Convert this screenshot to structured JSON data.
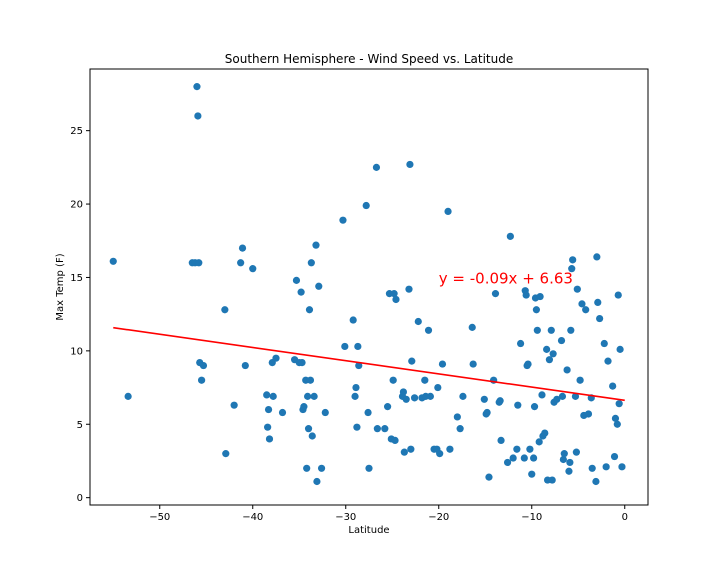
{
  "chart_data": {
    "type": "scatter",
    "title": "Southern Hemisphere - Wind Speed vs. Latitude",
    "xlabel": "Latitude",
    "ylabel": "Max Temp (F)",
    "xlim": [
      -57.5,
      2.5
    ],
    "ylim": [
      -0.5,
      29.2
    ],
    "xticks": [
      -50,
      -40,
      -30,
      -20,
      -10,
      0
    ],
    "xtick_labels": [
      "−50",
      "−40",
      "−30",
      "−20",
      "−10",
      "0"
    ],
    "yticks": [
      0,
      5,
      10,
      15,
      20,
      25
    ],
    "ytick_labels": [
      "0",
      "5",
      "10",
      "15",
      "20",
      "25"
    ],
    "grid": false,
    "legend": "none",
    "colors": {
      "points": "#1f77b4",
      "regression": "#ff0000"
    },
    "regression": {
      "slope": -0.09,
      "intercept": 6.63,
      "x_range": [
        -55,
        0
      ],
      "equation": "y = -0.09x + 6.63",
      "label_x": -20,
      "label_y": 15
    },
    "series": [
      {
        "points": [
          [
            -55,
            16.1
          ],
          [
            -53.4,
            6.9
          ],
          [
            -46.5,
            16
          ],
          [
            -46.2,
            16
          ],
          [
            -46,
            28
          ],
          [
            -45.9,
            26
          ],
          [
            -45.8,
            16
          ],
          [
            -45.7,
            9.2
          ],
          [
            -45.5,
            8
          ],
          [
            -45.3,
            9
          ],
          [
            -43,
            12.8
          ],
          [
            -42.9,
            3
          ],
          [
            -42,
            6.3
          ],
          [
            -41.3,
            16
          ],
          [
            -41.1,
            17
          ],
          [
            -40.8,
            9
          ],
          [
            -40,
            15.6
          ],
          [
            -38.5,
            7
          ],
          [
            -38.4,
            4.8
          ],
          [
            -38.3,
            6
          ],
          [
            -38.2,
            4
          ],
          [
            -37.9,
            9.2
          ],
          [
            -37.8,
            6.9
          ],
          [
            -37.5,
            9.5
          ],
          [
            -36.8,
            5.8
          ],
          [
            -35.5,
            9.4
          ],
          [
            -35.3,
            14.8
          ],
          [
            -35,
            9.2
          ],
          [
            -34.8,
            14
          ],
          [
            -34.7,
            9.2
          ],
          [
            -34.6,
            6
          ],
          [
            -34.5,
            6.2
          ],
          [
            -34.3,
            8
          ],
          [
            -34.2,
            2
          ],
          [
            -34.1,
            6.9
          ],
          [
            -34,
            4.7
          ],
          [
            -33.9,
            12.8
          ],
          [
            -33.8,
            8
          ],
          [
            -33.7,
            16
          ],
          [
            -33.6,
            4.2
          ],
          [
            -33.4,
            6.9
          ],
          [
            -33.2,
            17.2
          ],
          [
            -33.1,
            1.1
          ],
          [
            -32.9,
            14.4
          ],
          [
            -32.6,
            2
          ],
          [
            -32.2,
            5.8
          ],
          [
            -30.3,
            18.9
          ],
          [
            -30.1,
            10.3
          ],
          [
            -29.2,
            12.1
          ],
          [
            -29,
            6.9
          ],
          [
            -28.9,
            7.5
          ],
          [
            -28.8,
            4.8
          ],
          [
            -28.7,
            10.3
          ],
          [
            -28.6,
            9
          ],
          [
            -27.8,
            19.9
          ],
          [
            -27.6,
            5.8
          ],
          [
            -27.5,
            2
          ],
          [
            -26.7,
            22.5
          ],
          [
            -26.6,
            4.7
          ],
          [
            -25.8,
            4.7
          ],
          [
            -25.5,
            6.2
          ],
          [
            -25.3,
            13.9
          ],
          [
            -25.1,
            4
          ],
          [
            -24.9,
            8
          ],
          [
            -24.8,
            13.9
          ],
          [
            -24.7,
            3.9
          ],
          [
            -24.6,
            13.5
          ],
          [
            -23.9,
            6.9
          ],
          [
            -23.8,
            7.2
          ],
          [
            -23.7,
            3.1
          ],
          [
            -23.5,
            6.7
          ],
          [
            -23.2,
            14.2
          ],
          [
            -23.1,
            22.7
          ],
          [
            -23,
            3.3
          ],
          [
            -22.9,
            9.3
          ],
          [
            -22.6,
            6.8
          ],
          [
            -22.2,
            12
          ],
          [
            -21.8,
            6.8
          ],
          [
            -21.5,
            8
          ],
          [
            -21.4,
            6.9
          ],
          [
            -21.1,
            11.4
          ],
          [
            -20.9,
            6.9
          ],
          [
            -20.5,
            3.3
          ],
          [
            -20.2,
            3.3
          ],
          [
            -20.1,
            7.5
          ],
          [
            -19.9,
            3
          ],
          [
            -19.6,
            9.1
          ],
          [
            -19,
            19.5
          ],
          [
            -18.8,
            3.3
          ],
          [
            -18,
            5.5
          ],
          [
            -17.7,
            4.7
          ],
          [
            -17.4,
            6.9
          ],
          [
            -16.4,
            11.6
          ],
          [
            -16.3,
            9.1
          ],
          [
            -15.1,
            6.7
          ],
          [
            -14.9,
            5.7
          ],
          [
            -14.8,
            5.8
          ],
          [
            -14.6,
            1.4
          ],
          [
            -14.1,
            8
          ],
          [
            -13.9,
            13.9
          ],
          [
            -13.5,
            6.5
          ],
          [
            -13.4,
            6.6
          ],
          [
            -13.3,
            3.9
          ],
          [
            -12.6,
            2.4
          ],
          [
            -12.3,
            17.8
          ],
          [
            -12,
            2.7
          ],
          [
            -11.6,
            3.3
          ],
          [
            -11.5,
            6.3
          ],
          [
            -11.2,
            10.5
          ],
          [
            -10.8,
            2.7
          ],
          [
            -10.7,
            14.1
          ],
          [
            -10.6,
            13.8
          ],
          [
            -10.5,
            9
          ],
          [
            -10.4,
            9.1
          ],
          [
            -10.2,
            3.3
          ],
          [
            -10,
            1.6
          ],
          [
            -9.8,
            2.7
          ],
          [
            -9.7,
            6.2
          ],
          [
            -9.6,
            13.6
          ],
          [
            -9.5,
            12.8
          ],
          [
            -9.4,
            11.4
          ],
          [
            -9.2,
            3.8
          ],
          [
            -9.1,
            13.7
          ],
          [
            -8.9,
            7
          ],
          [
            -8.8,
            4.2
          ],
          [
            -8.6,
            4.4
          ],
          [
            -8.4,
            10.1
          ],
          [
            -8.3,
            1.2
          ],
          [
            -8.1,
            9.4
          ],
          [
            -7.9,
            11.4
          ],
          [
            -7.8,
            1.2
          ],
          [
            -7.7,
            9.8
          ],
          [
            -7.6,
            6.5
          ],
          [
            -7.3,
            6.7
          ],
          [
            -6.8,
            10.7
          ],
          [
            -6.7,
            6.9
          ],
          [
            -6.6,
            2.6
          ],
          [
            -6.5,
            3
          ],
          [
            -6.2,
            8.7
          ],
          [
            -6,
            1.8
          ],
          [
            -5.9,
            2.4
          ],
          [
            -5.8,
            11.4
          ],
          [
            -5.7,
            15.6
          ],
          [
            -5.6,
            16.2
          ],
          [
            -5.3,
            6.9
          ],
          [
            -5.2,
            3.1
          ],
          [
            -5.1,
            14.2
          ],
          [
            -4.8,
            8
          ],
          [
            -4.6,
            13.2
          ],
          [
            -4.4,
            5.6
          ],
          [
            -4.2,
            12.8
          ],
          [
            -3.9,
            5.7
          ],
          [
            -3.6,
            6.8
          ],
          [
            -3.5,
            2
          ],
          [
            -3.1,
            1.1
          ],
          [
            -3,
            16.4
          ],
          [
            -2.9,
            13.3
          ],
          [
            -2.7,
            12.2
          ],
          [
            -2.2,
            10.5
          ],
          [
            -2,
            2.1
          ],
          [
            -1.8,
            9.3
          ],
          [
            -1.3,
            7.6
          ],
          [
            -1.1,
            2.8
          ],
          [
            -1,
            5.4
          ],
          [
            -0.8,
            5
          ],
          [
            -0.7,
            13.8
          ],
          [
            -0.6,
            6.4
          ],
          [
            -0.5,
            10.1
          ],
          [
            -0.3,
            2.1
          ]
        ]
      }
    ]
  }
}
